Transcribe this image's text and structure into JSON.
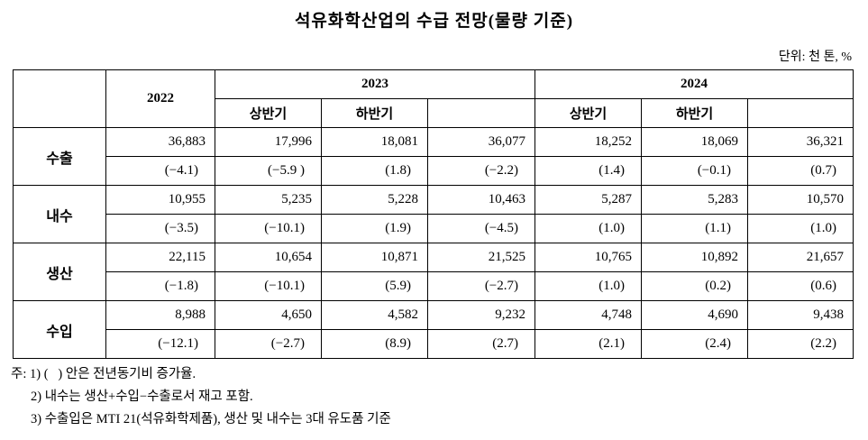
{
  "title": "석유화학산업의 수급 전망(물량 기준)",
  "unit": "단위: 천 톤, %",
  "table": {
    "years": [
      "2022",
      "2023",
      "2024"
    ],
    "halves": [
      "상반기",
      "하반기",
      "상반기",
      "하반기"
    ],
    "rows": [
      {
        "label": "수출",
        "values": [
          "36,883",
          "17,996",
          "18,081",
          "36,077",
          "18,252",
          "18,069",
          "36,321"
        ],
        "changes": [
          "(−4.1)",
          "(−5.9 )",
          "(1.8)",
          "(−2.2)",
          "(1.4)",
          "(−0.1)",
          "(0.7)"
        ]
      },
      {
        "label": "내수",
        "values": [
          "10,955",
          "5,235",
          "5,228",
          "10,463",
          "5,287",
          "5,283",
          "10,570"
        ],
        "changes": [
          "(−3.5)",
          "(−10.1)",
          "(1.9)",
          "(−4.5)",
          "(1.0)",
          "(1.1)",
          "(1.0)"
        ]
      },
      {
        "label": "생산",
        "values": [
          "22,115",
          "10,654",
          "10,871",
          "21,525",
          "10,765",
          "10,892",
          "21,657"
        ],
        "changes": [
          "(−1.8)",
          "(−10.1)",
          "(5.9)",
          "(−2.7)",
          "(1.0)",
          "(0.2)",
          "(0.6)"
        ]
      },
      {
        "label": "수입",
        "values": [
          "8,988",
          "4,650",
          "4,582",
          "9,232",
          "4,748",
          "4,690",
          "9,438"
        ],
        "changes": [
          "(−12.1)",
          "(−2.7)",
          "(8.9)",
          "(2.7)",
          "(2.1)",
          "(2.4)",
          "(2.2)"
        ]
      }
    ]
  },
  "notes": [
    "주: 1) (   ) 안은 전년동기비 증가율.",
    "2) 내수는 생산+수입−수출로서 재고 포함.",
    "3) 수출입은 MTI 21(석유화학제품), 생산 및 내수는 3대 유도품 기준"
  ]
}
